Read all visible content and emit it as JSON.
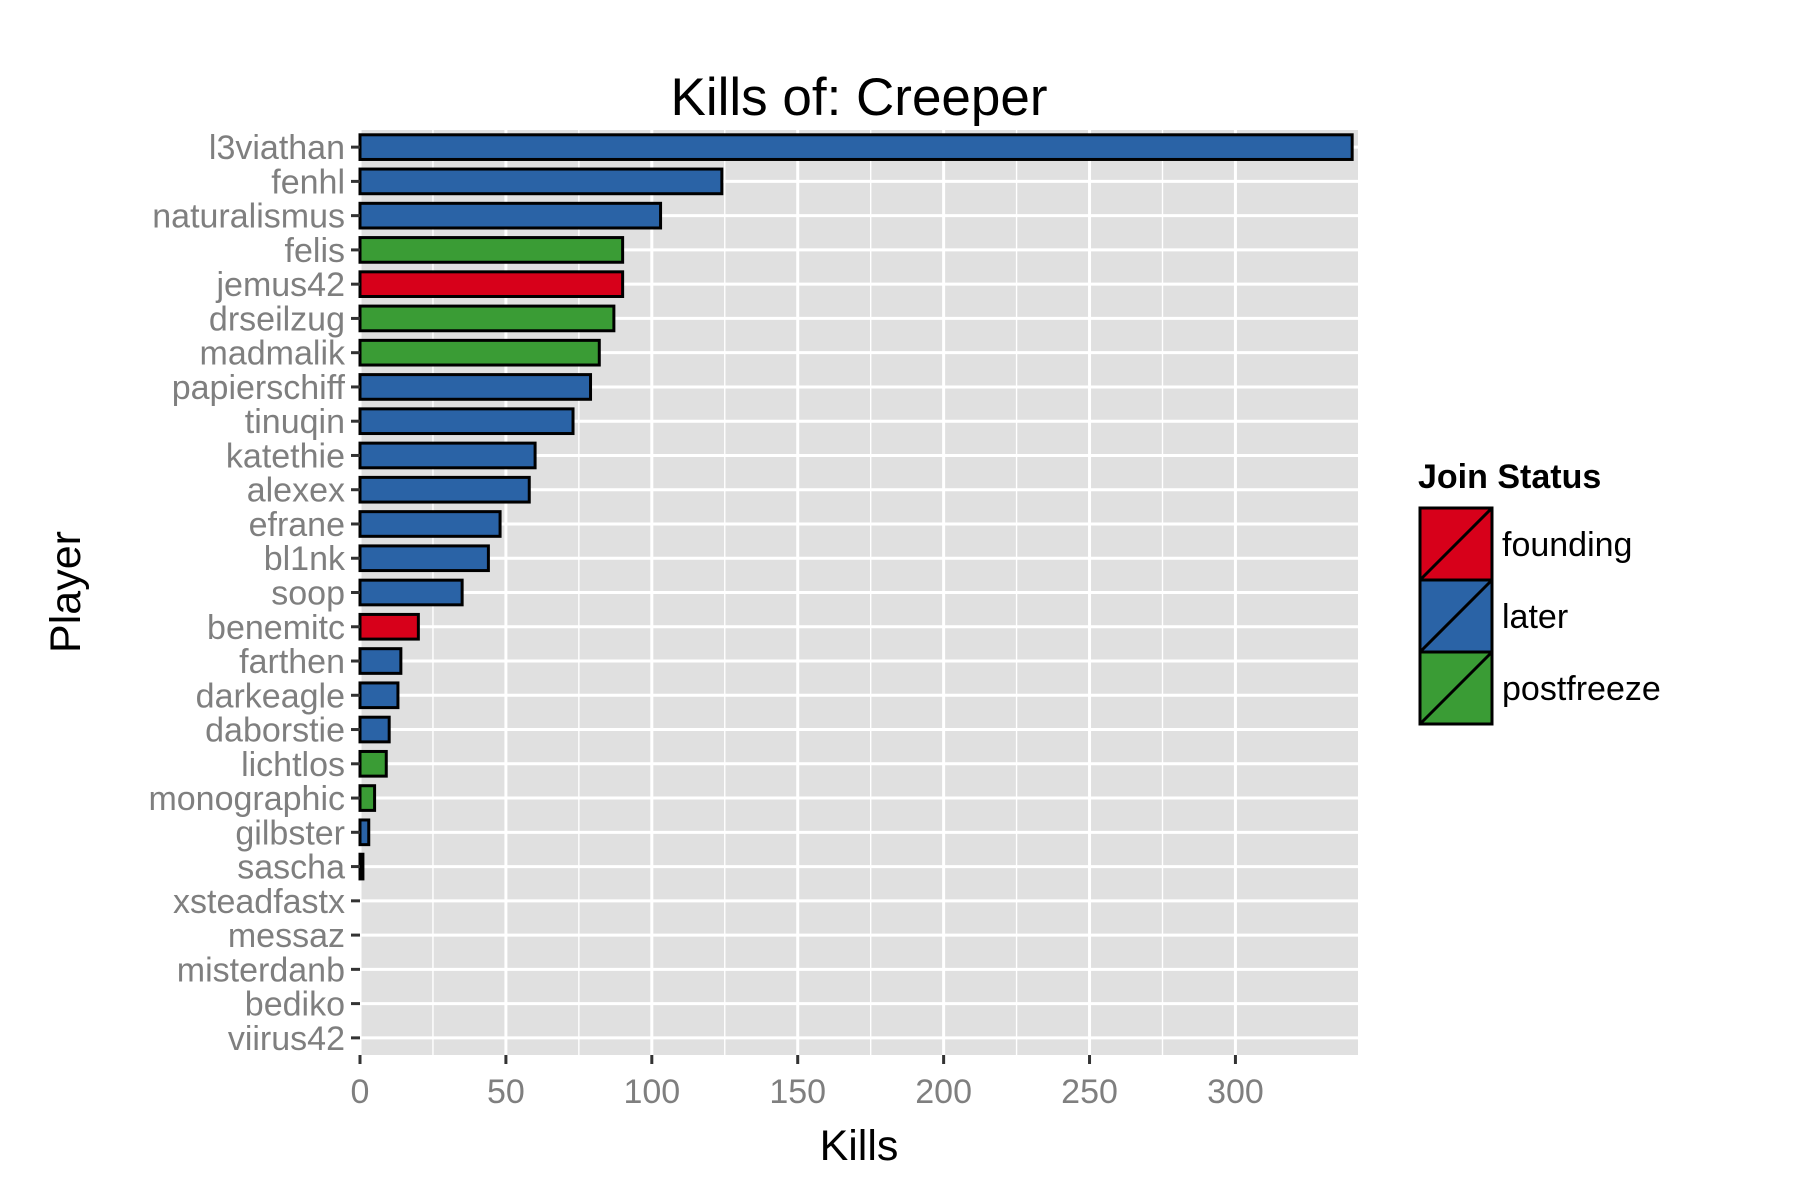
{
  "chart_data": {
    "type": "bar",
    "orientation": "horizontal",
    "title": "Kills of: Creeper",
    "xlabel": "Kills",
    "ylabel": "Player",
    "xlim": [
      0,
      342
    ],
    "xticks": [
      0,
      50,
      100,
      150,
      200,
      250,
      300
    ],
    "grid": true,
    "legend_position": "right",
    "legend": {
      "title": "Join Status",
      "entries": [
        {
          "label": "founding",
          "color": "#d7001a"
        },
        {
          "label": "later",
          "color": "#2a63a6"
        },
        {
          "label": "postfreeze",
          "color": "#3a9c35"
        }
      ]
    },
    "colors": {
      "founding": "#d7001a",
      "later": "#2a63a6",
      "postfreeze": "#3a9c35",
      "panel_background": "#e0e0e0",
      "grid": "#ffffff",
      "bar_outline": "#000000"
    },
    "categories": [
      "l3viathan",
      "fenhl",
      "naturalismus",
      "felis",
      "jemus42",
      "drseilzug",
      "madmalik",
      "papierschiff",
      "tinuqin",
      "katethie",
      "alexex",
      "efrane",
      "bl1nk",
      "soop",
      "benemitc",
      "farthen",
      "darkeagle",
      "daborstie",
      "lichtlos",
      "monographic",
      "gilbster",
      "sascha",
      "xsteadfastx",
      "messaz",
      "misterdanb",
      "bediko",
      "viirus42"
    ],
    "values": [
      340,
      124,
      103,
      90,
      90,
      87,
      82,
      79,
      73,
      60,
      58,
      48,
      44,
      35,
      20,
      14,
      13,
      10,
      9,
      5,
      3,
      1,
      0,
      0,
      0,
      0,
      0
    ],
    "status": [
      "later",
      "later",
      "later",
      "postfreeze",
      "founding",
      "postfreeze",
      "postfreeze",
      "later",
      "later",
      "later",
      "later",
      "later",
      "later",
      "later",
      "founding",
      "later",
      "later",
      "later",
      "postfreeze",
      "postfreeze",
      "later",
      "later",
      "later",
      "later",
      "later",
      "later",
      "later"
    ]
  }
}
